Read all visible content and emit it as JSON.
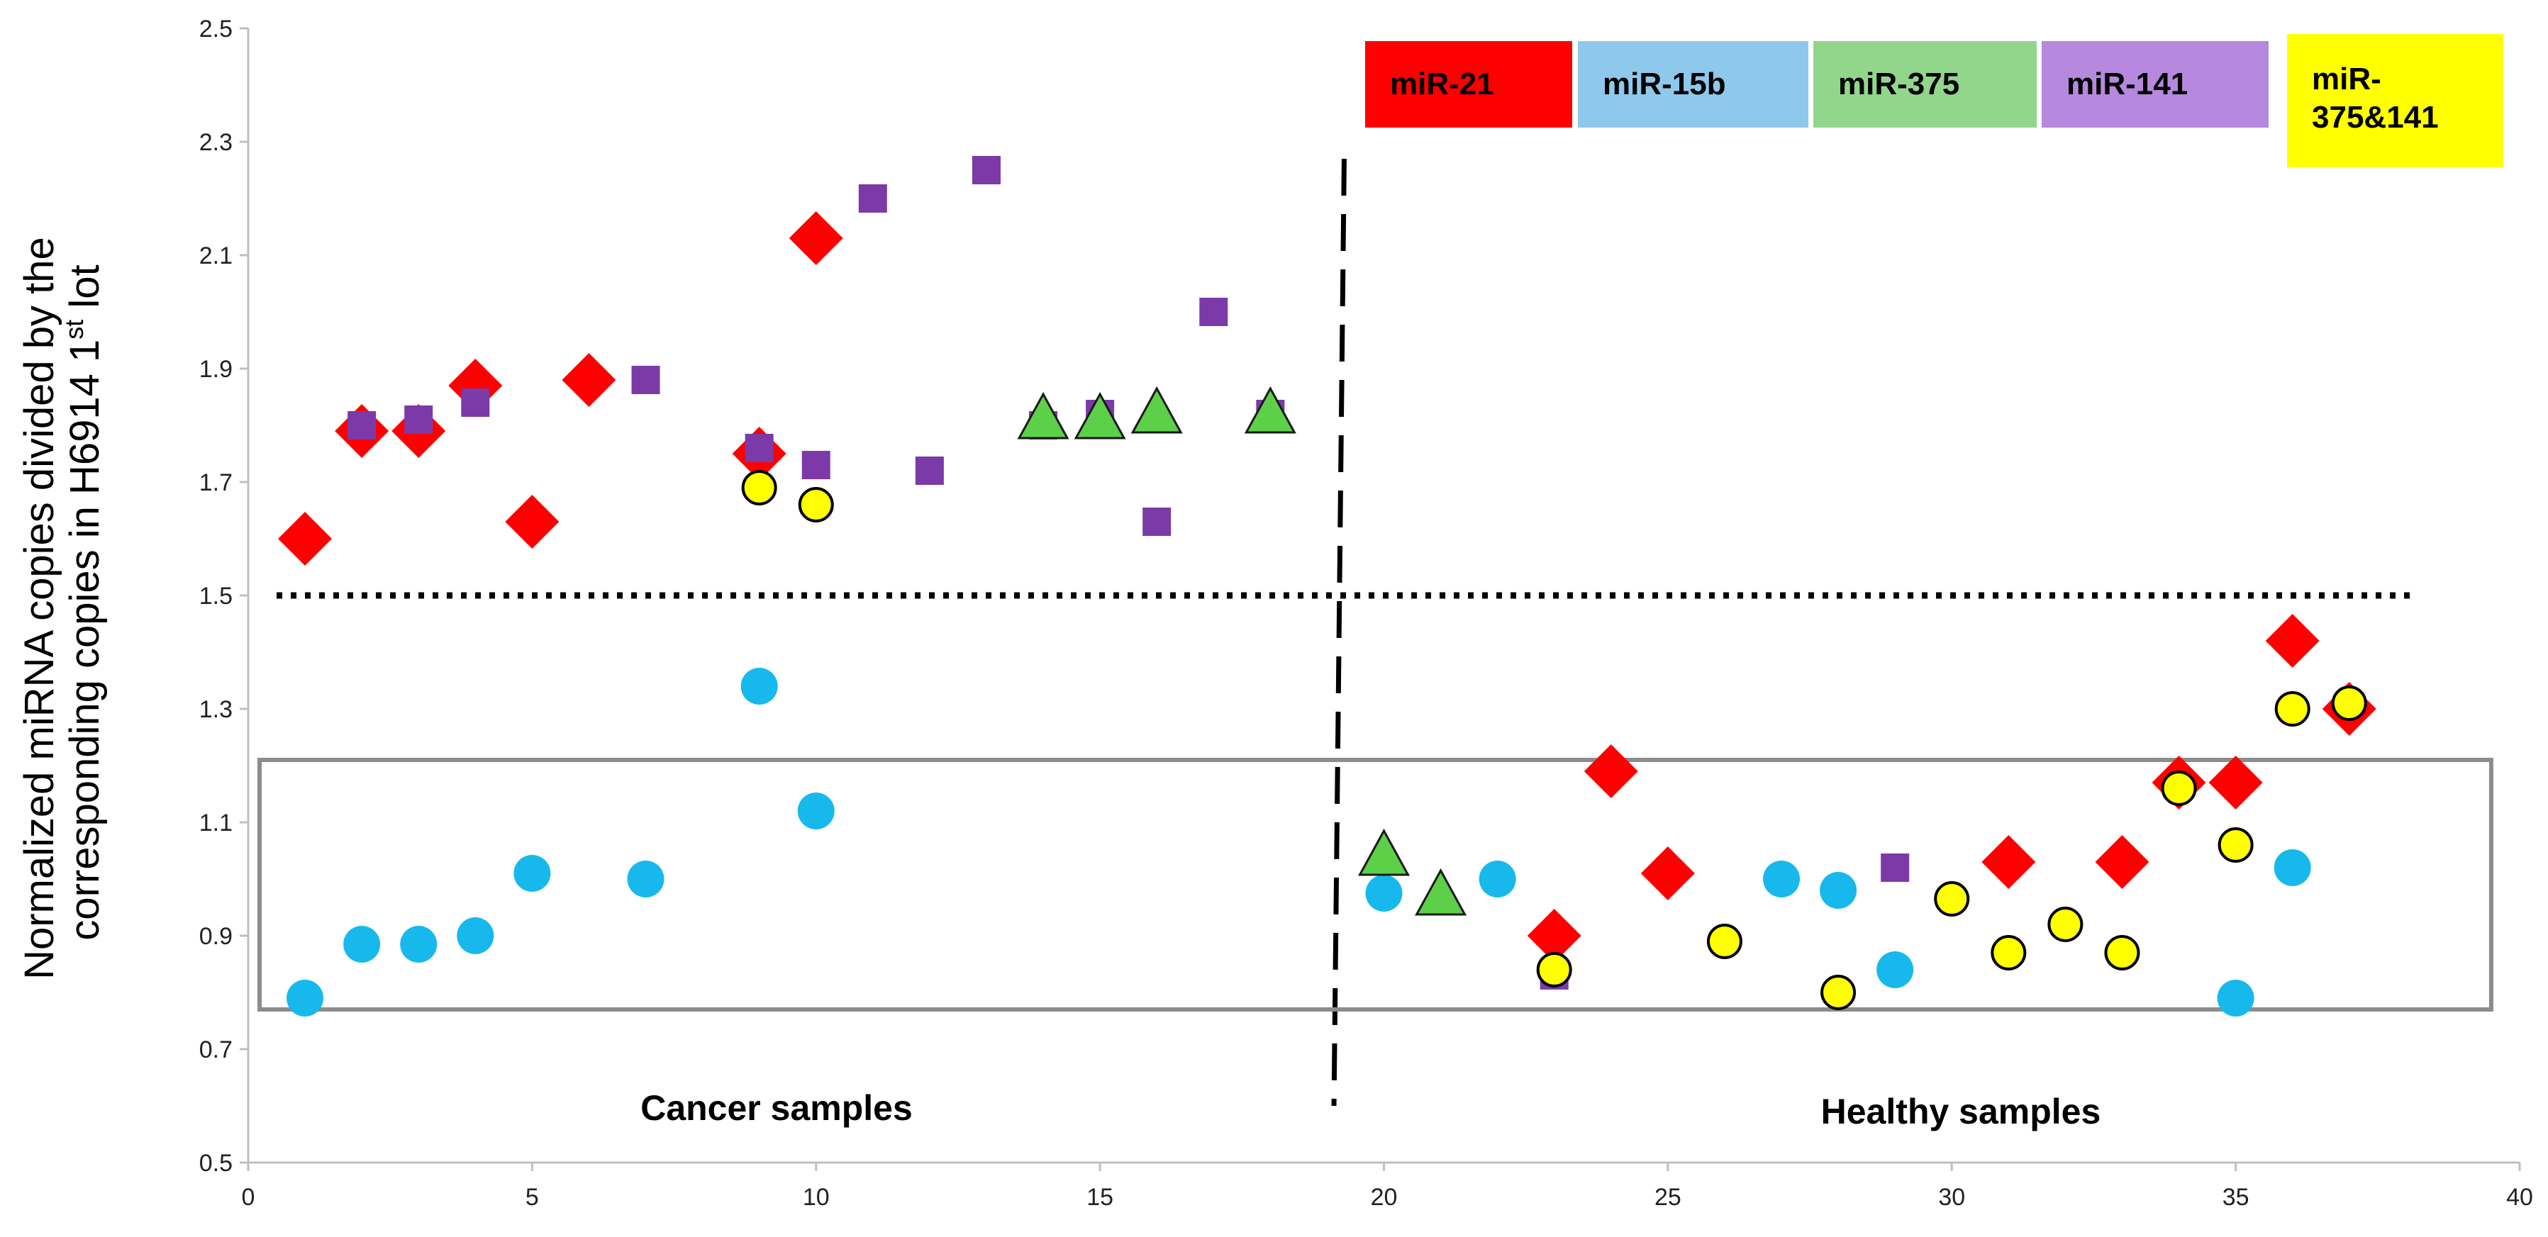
{
  "chart_data": {
    "type": "scatter",
    "title": "",
    "ylabel": {
      "line1": "Normalized miRNA copies divided by the",
      "line2_prefix": "corresponding copies in H6914 1",
      "line2_sup": "st",
      "line2_suffix": " lot"
    },
    "xlabel": "",
    "xlim": [
      0,
      40
    ],
    "ylim": [
      0.5,
      2.5
    ],
    "xticks": [
      0,
      5,
      10,
      15,
      20,
      25,
      30,
      35,
      40
    ],
    "yticks": [
      "0.5",
      "0.7",
      "0.9",
      "1.1",
      "1.3",
      "1.5",
      "1.7",
      "1.9",
      "2.1",
      "2.3",
      "2.5"
    ],
    "threshold_y": 1.5,
    "divider_x": 19.2,
    "normal_box": {
      "x_from": 0.2,
      "x_to": 39.5,
      "y_from": 0.77,
      "y_to": 1.21
    },
    "regions": {
      "cancer": "Cancer samples",
      "healthy": "Healthy samples"
    },
    "colors": {
      "miR-21": "#ff0000",
      "miR-15b": "#17b9ec",
      "miR-375": "#5dd04a",
      "miR-141": "#7b3aa8",
      "miR-375&141": "#ffff00"
    },
    "legend": [
      {
        "line1": "miR-21",
        "line2": "",
        "bg": "#ff0000"
      },
      {
        "line1": "miR-15b",
        "line2": "",
        "bg": "#8ec9ec"
      },
      {
        "line1": "miR-375",
        "line2": "",
        "bg": "#92d68b"
      },
      {
        "line1": "miR-141",
        "line2": "",
        "bg": "#b688de"
      },
      {
        "line1": "miR-",
        "line2": "375&141",
        "bg": "#ffff00"
      }
    ],
    "series": [
      {
        "name": "miR-15b",
        "marker": "circle",
        "points": [
          [
            1,
            0.79
          ],
          [
            2,
            0.885
          ],
          [
            3,
            0.885
          ],
          [
            4,
            0.9
          ],
          [
            5,
            1.01
          ],
          [
            7,
            1.0
          ],
          [
            9,
            1.34
          ],
          [
            10,
            1.12
          ],
          [
            20,
            0.975
          ],
          [
            22,
            1.0
          ],
          [
            27,
            1.0
          ],
          [
            28,
            0.98
          ],
          [
            29,
            0.84
          ],
          [
            35,
            0.79
          ],
          [
            36,
            1.02
          ]
        ]
      },
      {
        "name": "miR-21",
        "marker": "diamond",
        "points": [
          [
            1,
            1.6
          ],
          [
            2,
            1.79
          ],
          [
            3,
            1.79
          ],
          [
            4,
            1.87
          ],
          [
            5,
            1.63
          ],
          [
            6,
            1.88
          ],
          [
            9,
            1.75
          ],
          [
            10,
            2.13
          ],
          [
            23,
            0.9
          ],
          [
            24,
            1.19
          ],
          [
            25,
            1.01
          ],
          [
            31,
            1.03
          ],
          [
            33,
            1.03
          ],
          [
            34,
            1.17
          ],
          [
            35,
            1.17
          ],
          [
            36,
            1.42
          ],
          [
            37,
            1.3
          ]
        ]
      },
      {
        "name": "miR-141",
        "marker": "square",
        "points": [
          [
            2,
            1.8
          ],
          [
            3,
            1.81
          ],
          [
            4,
            1.84
          ],
          [
            7,
            1.88
          ],
          [
            9,
            1.76
          ],
          [
            10,
            1.73
          ],
          [
            11,
            2.2
          ],
          [
            12,
            1.72
          ],
          [
            13,
            2.25
          ],
          [
            14,
            1.8
          ],
          [
            15,
            1.82
          ],
          [
            16,
            1.63
          ],
          [
            17,
            2.0
          ],
          [
            18,
            1.82
          ],
          [
            23,
            0.83
          ],
          [
            29,
            1.02
          ]
        ]
      },
      {
        "name": "miR-375",
        "marker": "triangle",
        "points": [
          [
            14,
            1.81
          ],
          [
            15,
            1.81
          ],
          [
            16,
            1.82
          ],
          [
            18,
            1.82
          ],
          [
            20,
            1.04
          ],
          [
            21,
            0.97
          ]
        ]
      },
      {
        "name": "miR-375&141",
        "marker": "circle-outline",
        "points": [
          [
            9,
            1.69
          ],
          [
            10,
            1.66
          ],
          [
            23,
            0.84
          ],
          [
            26,
            0.89
          ],
          [
            28,
            0.8
          ],
          [
            30,
            0.965
          ],
          [
            31,
            0.87
          ],
          [
            32,
            0.92
          ],
          [
            33,
            0.87
          ],
          [
            34,
            1.16
          ],
          [
            35,
            1.06
          ],
          [
            36,
            1.3
          ],
          [
            37,
            1.31
          ]
        ]
      }
    ]
  }
}
